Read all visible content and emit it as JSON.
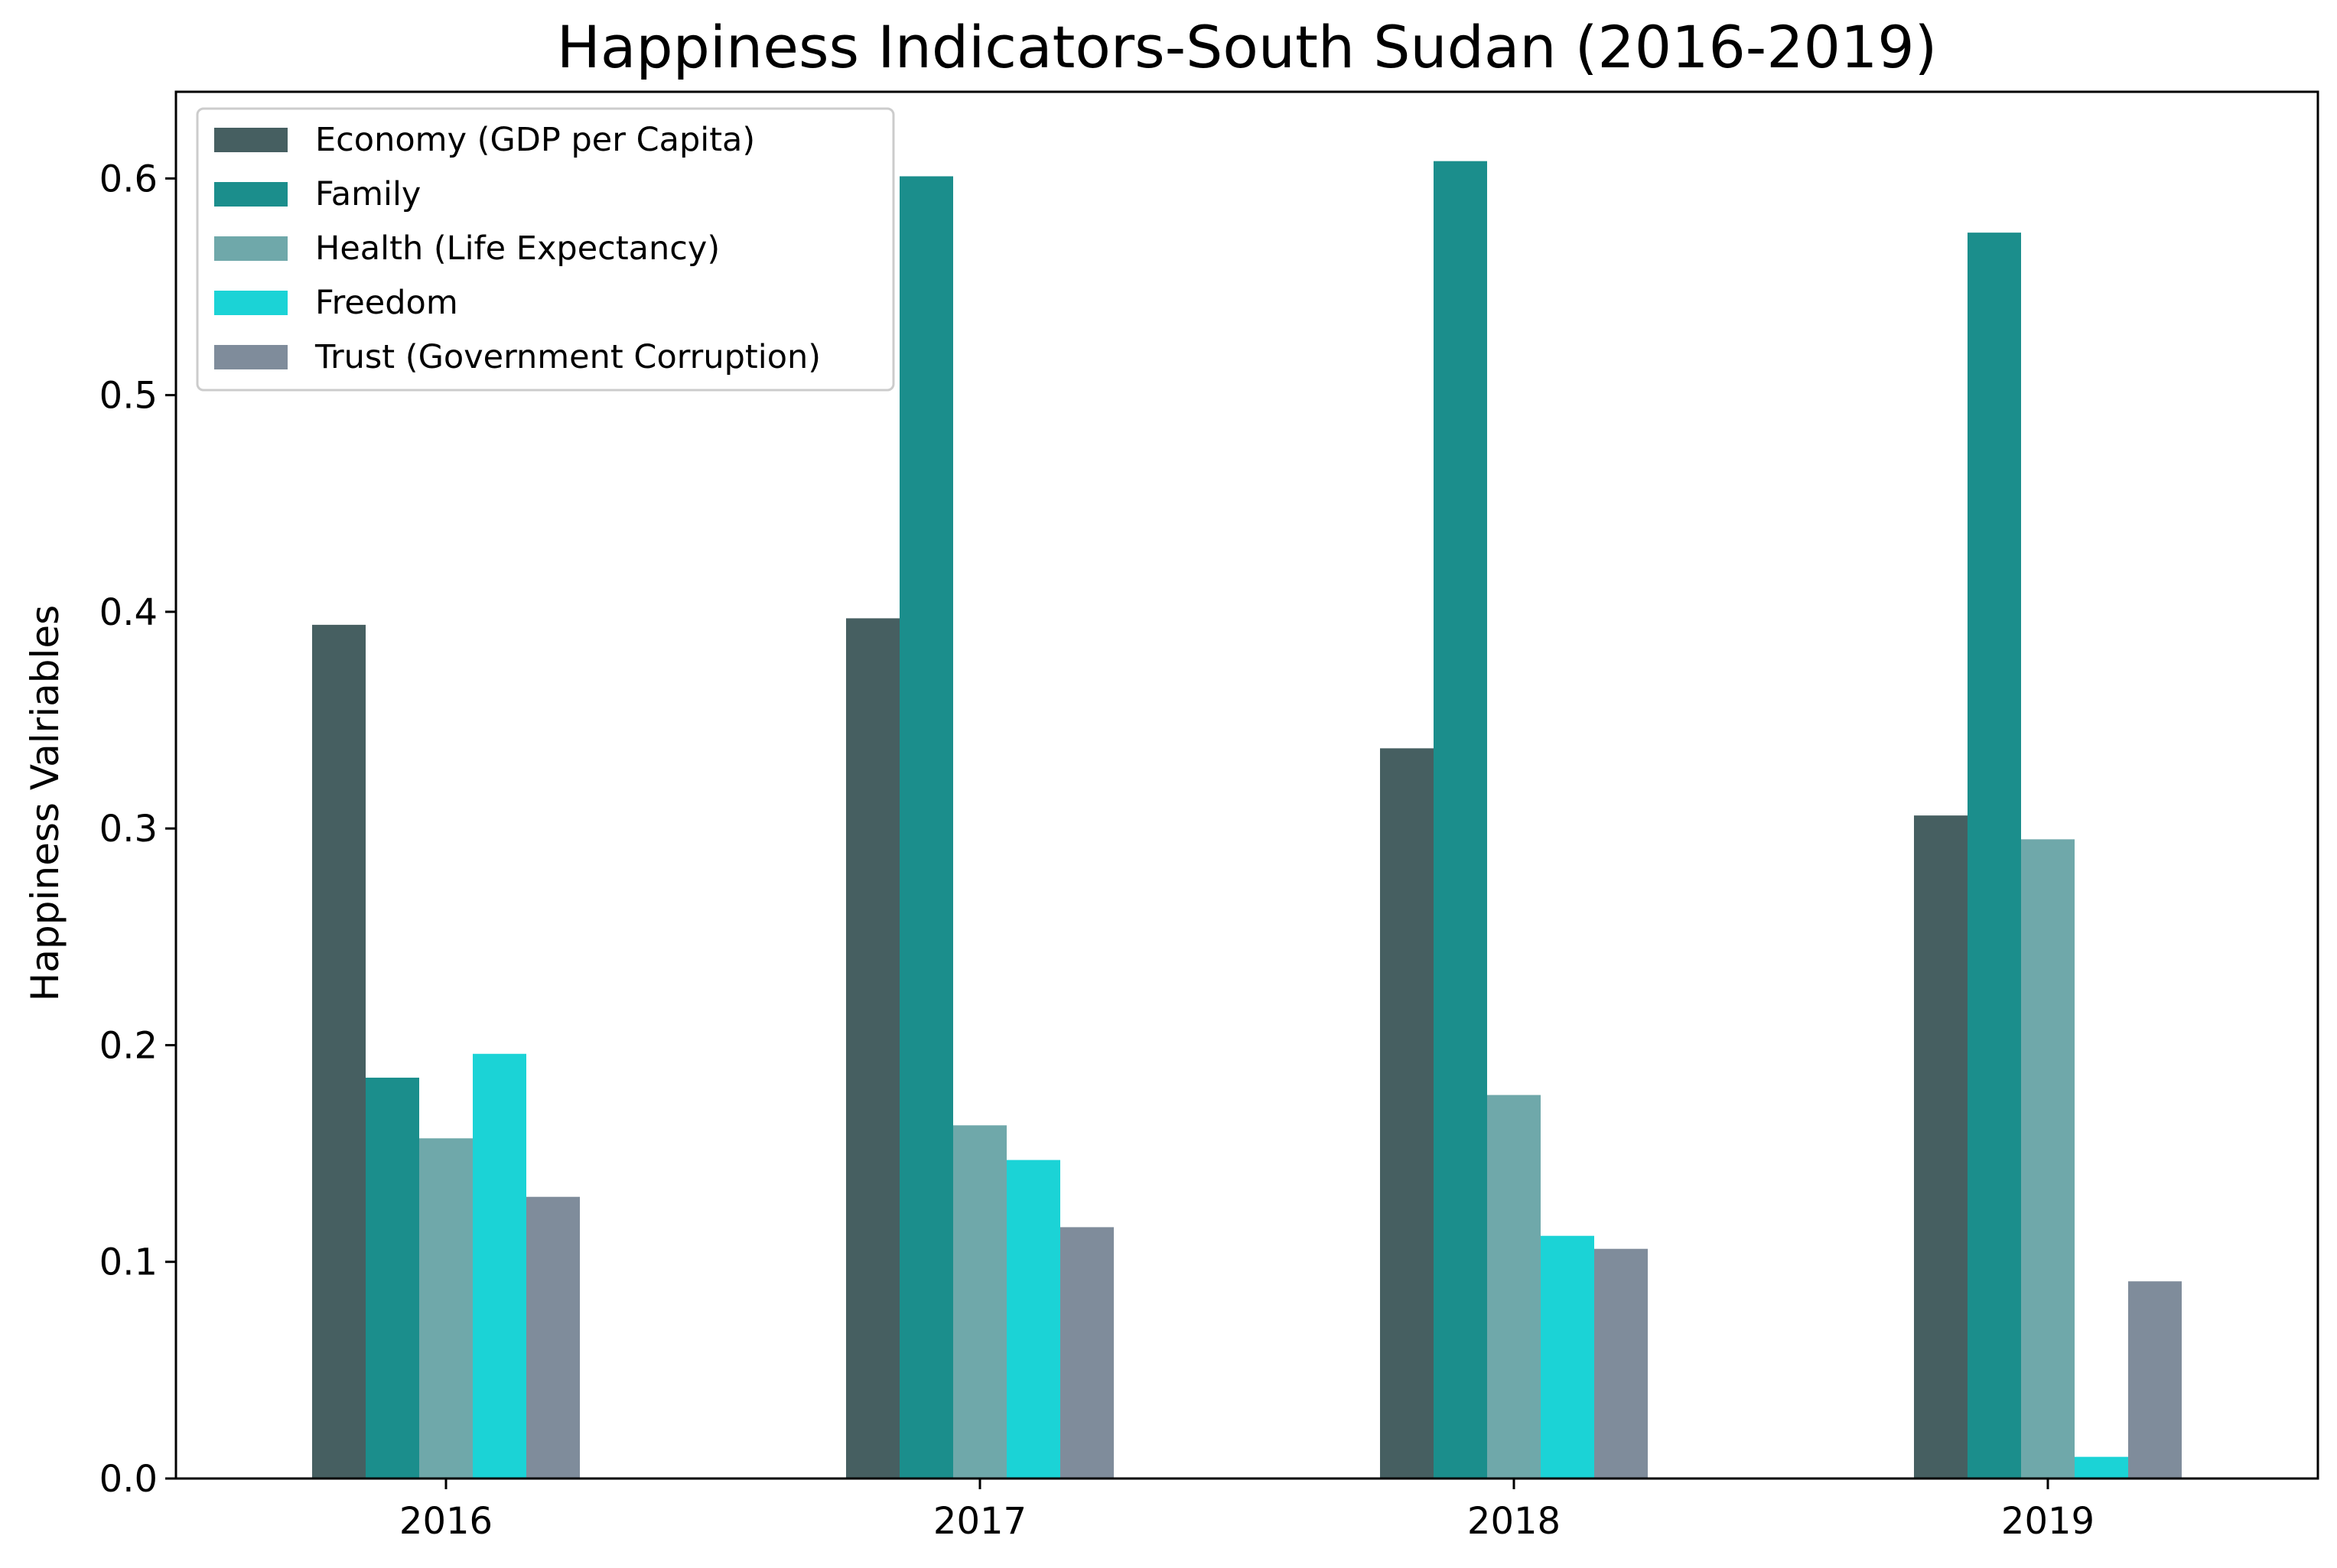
{
  "chart_data": {
    "type": "bar",
    "title": "Happiness Indicators-South Sudan (2016-2019)",
    "xlabel": "",
    "ylabel": "Happiness Valriables",
    "categories": [
      "2016",
      "2017",
      "2018",
      "2019"
    ],
    "ylim": [
      0,
      0.64
    ],
    "yticks": [
      0.0,
      0.1,
      0.2,
      0.3,
      0.4,
      0.5,
      0.6
    ],
    "ytick_labels": [
      "0.0",
      "0.1",
      "0.2",
      "0.3",
      "0.4",
      "0.5",
      "0.6"
    ],
    "grid": false,
    "legend_position": "top-left",
    "series": [
      {
        "name": "Economy (GDP per Capita)",
        "color": "#465f61",
        "values": [
          0.394,
          0.397,
          0.337,
          0.306
        ]
      },
      {
        "name": "Family",
        "color": "#1b8e8c",
        "values": [
          0.185,
          0.601,
          0.608,
          0.575
        ]
      },
      {
        "name": "Health (Life Expectancy)",
        "color": "#6fa8aa",
        "values": [
          0.157,
          0.163,
          0.177,
          0.295
        ]
      },
      {
        "name": "Freedom",
        "color": "#1bd3d6",
        "values": [
          0.196,
          0.147,
          0.112,
          0.01
        ]
      },
      {
        "name": "Trust (Government Corruption)",
        "color": "#7f8c9b",
        "values": [
          0.13,
          0.116,
          0.106,
          0.091
        ]
      }
    ]
  }
}
